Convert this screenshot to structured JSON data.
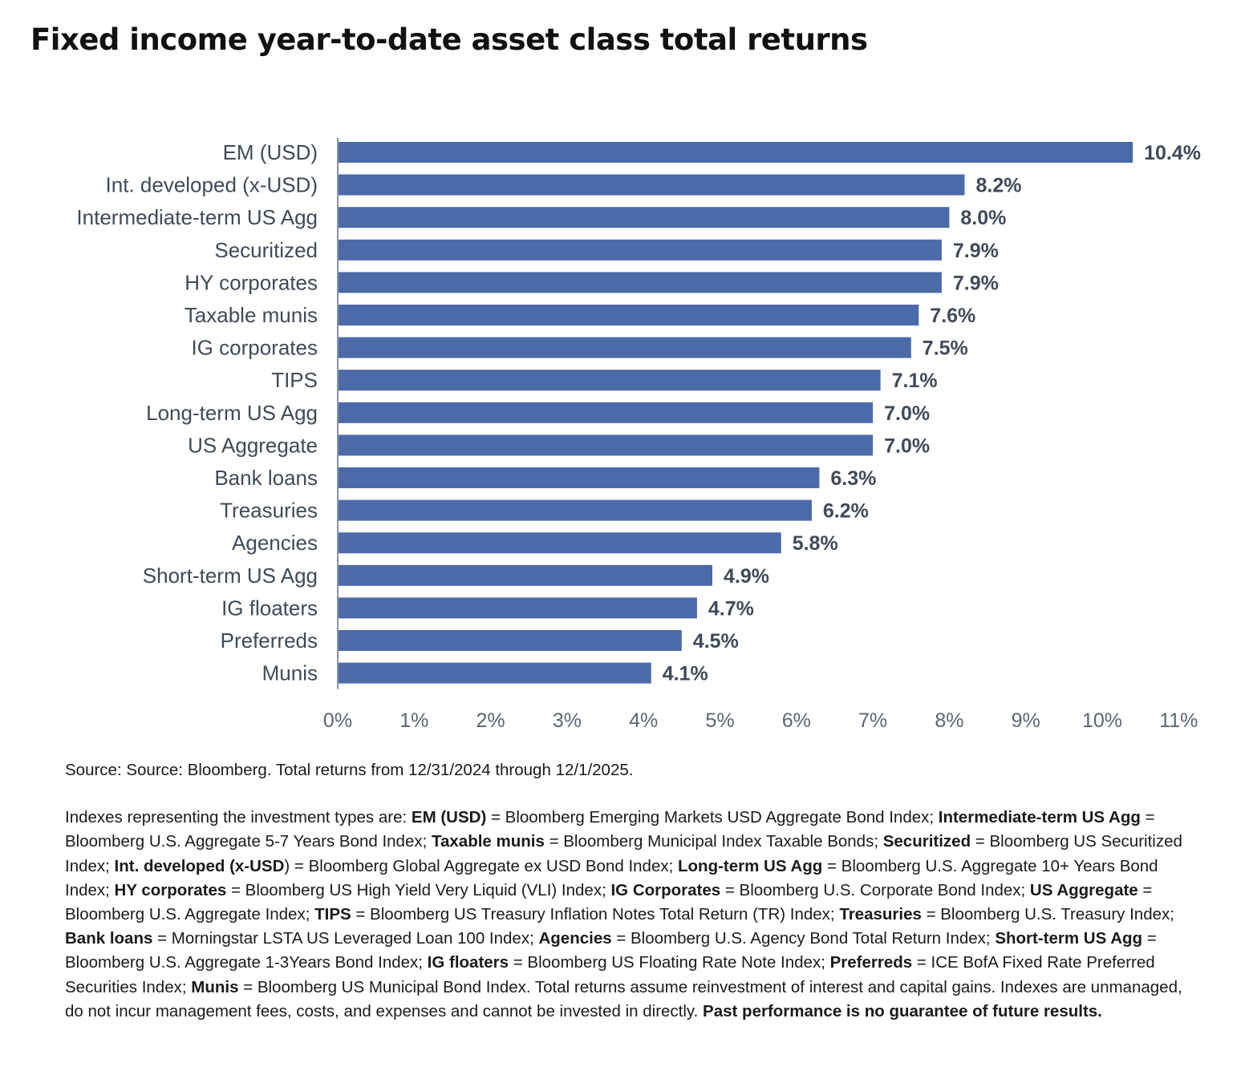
{
  "title": "Fixed income year-to-date asset class total returns",
  "chart_data": {
    "type": "bar",
    "orientation": "horizontal",
    "title": "",
    "xlabel": "",
    "ylabel": "",
    "categories": [
      "EM (USD)",
      "Int. developed (x-USD)",
      "Intermediate-term US Agg",
      "Securitized",
      "HY corporates",
      "Taxable munis",
      "IG corporates",
      "TIPS",
      "Long-term US Agg",
      "US Aggregate",
      "Bank loans",
      "Treasuries",
      "Agencies",
      "Short-term US Agg",
      "IG floaters",
      "Preferreds",
      "Munis"
    ],
    "values": [
      10.4,
      8.2,
      8.0,
      7.9,
      7.9,
      7.6,
      7.5,
      7.1,
      7.0,
      7.0,
      6.3,
      6.2,
      5.8,
      4.9,
      4.7,
      4.5,
      4.1
    ],
    "value_labels": [
      "10.4%",
      "8.2%",
      "8.0%",
      "7.9%",
      "7.9%",
      "7.6%",
      "7.5%",
      "7.1%",
      "7.0%",
      "7.0%",
      "6.3%",
      "6.2%",
      "5.8%",
      "4.9%",
      "4.7%",
      "4.5%",
      "4.1%"
    ],
    "xlim": [
      0,
      11
    ],
    "x_ticks": [
      0,
      1,
      2,
      3,
      4,
      5,
      6,
      7,
      8,
      9,
      10,
      11
    ],
    "x_tick_labels": [
      "0%",
      "1%",
      "2%",
      "3%",
      "4%",
      "5%",
      "6%",
      "7%",
      "8%",
      "9%",
      "10%",
      "11%"
    ],
    "grid": false,
    "legend": "none",
    "bar_color": "#4a6aa8"
  },
  "footnotes": {
    "source": "Source: Source: Bloomberg. Total returns from 12/31/2024 through 12/1/2025.",
    "indexes_intro": "Indexes representing the investment types are: ",
    "index_definitions": [
      {
        "term": "EM (USD)",
        "definition": " = Bloomberg Emerging Markets USD Aggregate Bond Index; "
      },
      {
        "term": "Intermediate-term US Agg",
        "definition": " = Bloomberg U.S. Aggregate 5-7 Years Bond Index; "
      },
      {
        "term": "Taxable munis",
        "definition": " = Bloomberg Municipal Index Taxable Bonds; "
      },
      {
        "term": "Securitized",
        "definition": " = Bloomberg US Securitized Index; "
      },
      {
        "term": "Int. developed (x-USD",
        "definition": ") = Bloomberg Global Aggregate ex USD Bond Index; "
      },
      {
        "term": "Long-term US Agg",
        "definition": " = Bloomberg U.S. Aggregate 10+ Years Bond Index; "
      },
      {
        "term": "HY corporates",
        "definition": " = Bloomberg US High Yield Very Liquid (VLI) Index; "
      },
      {
        "term": "IG Corporates",
        "definition": " = Bloomberg U.S. Corporate Bond Index; "
      },
      {
        "term": "US Aggregate",
        "definition": " = Bloomberg U.S. Aggregate Index; "
      },
      {
        "term": "TIPS",
        "definition": " = Bloomberg US Treasury Inflation Notes Total Return (TR) Index; "
      },
      {
        "term": "Treasuries",
        "definition": " = Bloomberg U.S. Treasury Index; "
      },
      {
        "term": "Bank loans",
        "definition": " = Morningstar LSTA US Leveraged Loan 100 Index; "
      },
      {
        "term": "Agencies",
        "definition": " = Bloomberg U.S. Agency Bond Total Return Index; "
      },
      {
        "term": "Short-term US Agg",
        "definition": " = Bloomberg U.S. Aggregate 1-3Years Bond Index; "
      },
      {
        "term": "IG floaters",
        "definition": " = Bloomberg US Floating Rate Note Index; "
      },
      {
        "term": "Preferreds",
        "definition": " = ICE BofA Fixed Rate Preferred Securities Index; "
      },
      {
        "term": "Munis",
        "definition": " = Bloomberg US Municipal Bond Index. "
      }
    ],
    "returns_note": "Total returns assume reinvestment of interest and capital gains. Indexes are unmanaged, do not incur management fees, costs, and expenses and cannot be invested in directly. ",
    "disclaimer": "Past performance is no guarantee of future results."
  }
}
